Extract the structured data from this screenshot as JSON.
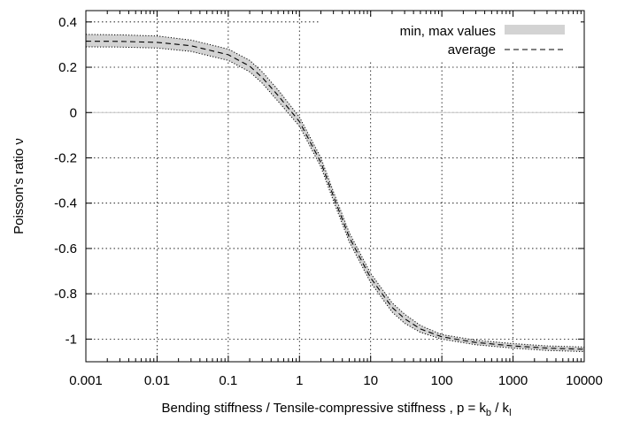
{
  "chart_data": {
    "type": "line",
    "title": "",
    "xlabel": "Bending stiffness / Tensile-compressive stiffness , p = k",
    "xlabel_sub1": "b",
    "xlabel_mid": " / k",
    "xlabel_sub2": "l",
    "ylabel": "Poisson's ratio ν",
    "xscale": "log",
    "xlim": [
      0.001,
      10000
    ],
    "ylim": [
      -1.1,
      0.45
    ],
    "grid": true,
    "legend_position": "top-right",
    "x_ticks": [
      {
        "value": 0.001,
        "label": "0.001"
      },
      {
        "value": 0.01,
        "label": "0.01"
      },
      {
        "value": 0.1,
        "label": "0.1"
      },
      {
        "value": 1,
        "label": "1"
      },
      {
        "value": 10,
        "label": "10"
      },
      {
        "value": 100,
        "label": "100"
      },
      {
        "value": 1000,
        "label": "1000"
      },
      {
        "value": 10000,
        "label": "10000"
      }
    ],
    "y_ticks": [
      {
        "value": 0.4,
        "label": "0.4"
      },
      {
        "value": 0.2,
        "label": "0.2"
      },
      {
        "value": 0,
        "label": "0"
      },
      {
        "value": -0.2,
        "label": "-0.2"
      },
      {
        "value": -0.4,
        "label": "-0.4"
      },
      {
        "value": -0.6,
        "label": "-0.6"
      },
      {
        "value": -0.8,
        "label": "-0.8"
      },
      {
        "value": -1,
        "label": "-1"
      }
    ],
    "series": [
      {
        "name": "min, max values",
        "style": "band",
        "color": "#d3d3d3",
        "x": [
          0.001,
          0.003,
          0.01,
          0.03,
          0.1,
          0.2,
          0.3,
          0.5,
          1,
          2,
          3,
          5,
          10,
          20,
          30,
          50,
          100,
          300,
          1000,
          3000,
          10000
        ],
        "min": [
          0.29,
          0.289,
          0.285,
          0.27,
          0.23,
          0.18,
          0.13,
          0.05,
          -0.06,
          -0.24,
          -0.39,
          -0.57,
          -0.75,
          -0.88,
          -0.93,
          -0.97,
          -1.0,
          -1.025,
          -1.04,
          -1.05,
          -1.055
        ],
        "max": [
          0.345,
          0.343,
          0.338,
          0.32,
          0.28,
          0.23,
          0.18,
          0.1,
          -0.02,
          -0.2,
          -0.35,
          -0.53,
          -0.71,
          -0.84,
          -0.89,
          -0.94,
          -0.98,
          -1.005,
          -1.02,
          -1.03,
          -1.035
        ]
      },
      {
        "name": "average",
        "style": "dashed",
        "color": "#000000",
        "x": [
          0.001,
          0.003,
          0.01,
          0.03,
          0.1,
          0.2,
          0.3,
          0.5,
          1,
          2,
          3,
          5,
          10,
          20,
          30,
          50,
          100,
          300,
          1000,
          3000,
          10000
        ],
        "y": [
          0.315,
          0.314,
          0.31,
          0.295,
          0.255,
          0.205,
          0.155,
          0.075,
          -0.04,
          -0.22,
          -0.37,
          -0.55,
          -0.73,
          -0.86,
          -0.91,
          -0.955,
          -0.99,
          -1.015,
          -1.03,
          -1.04,
          -1.045
        ]
      }
    ]
  }
}
